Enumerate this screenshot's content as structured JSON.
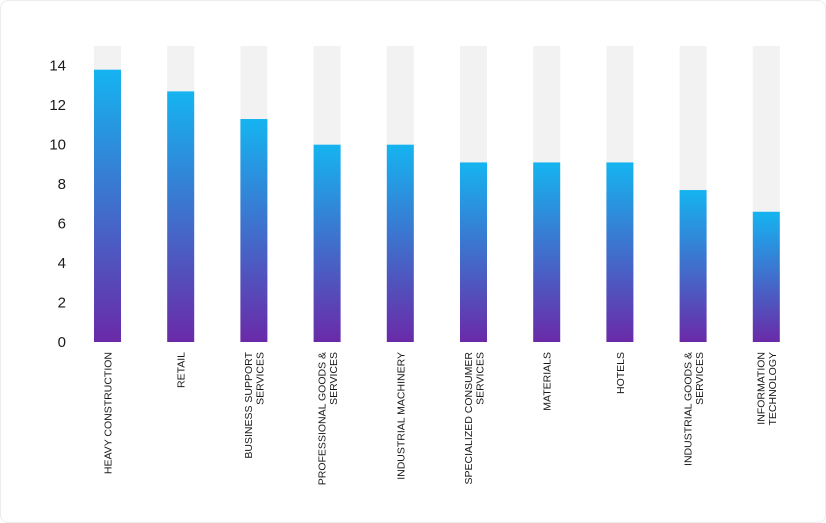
{
  "chart_data": {
    "type": "bar",
    "title": "",
    "xlabel": "",
    "ylabel": "",
    "ylim": [
      0,
      15
    ],
    "yticks": [
      0,
      2,
      4,
      6,
      8,
      10,
      12,
      14
    ],
    "grid": false,
    "legend": "none",
    "categories": [
      [
        "HEAVY CONSTRUCTION"
      ],
      [
        "RETAIL"
      ],
      [
        "BUSINESS SUPPORT",
        "SERVICES"
      ],
      [
        "PROFESSIONAL GOODS &",
        "SERVICES"
      ],
      [
        "INDUSTRIAL MACHINERY"
      ],
      [
        "SPECIALIZED CONSUMER",
        "SERVICES"
      ],
      [
        "MATERIALS"
      ],
      [
        "HOTELS"
      ],
      [
        "INDUSTRIAL GOODS &",
        "SERVICES"
      ],
      [
        "INFORMATION",
        "TECHNOLOGY"
      ]
    ],
    "values": [
      13.8,
      12.7,
      11.3,
      10.0,
      10.0,
      9.1,
      9.1,
      9.1,
      7.7,
      6.6
    ],
    "colors": {
      "bar_top": "#15b4f0",
      "bar_bottom": "#6a2aa8",
      "track": "#f2f2f2"
    }
  }
}
